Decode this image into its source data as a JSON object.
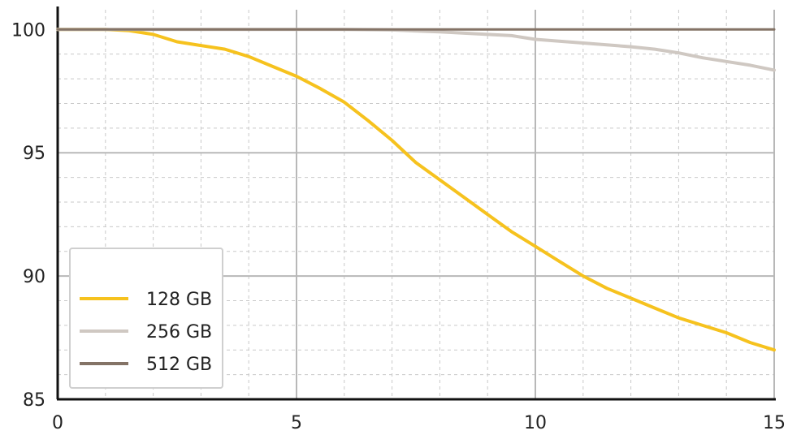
{
  "chart_data": {
    "type": "line",
    "title": "",
    "xlabel": "",
    "ylabel": "",
    "xlim": [
      0,
      15
    ],
    "ylim": [
      85,
      100.8
    ],
    "x_ticks": [
      0,
      5,
      10,
      15
    ],
    "y_ticks": [
      85,
      90,
      95,
      100
    ],
    "x_minor_step": 1,
    "y_minor_step": 1,
    "grid": true,
    "legend_position": "bottom-left",
    "series": [
      {
        "name": "128 GB",
        "color": "#F6C21E",
        "points": [
          [
            0,
            100
          ],
          [
            1,
            100
          ],
          [
            1.5,
            99.95
          ],
          [
            2,
            99.8
          ],
          [
            2.5,
            99.5
          ],
          [
            3,
            99.35
          ],
          [
            3.5,
            99.2
          ],
          [
            4,
            98.9
          ],
          [
            4.5,
            98.5
          ],
          [
            5,
            98.1
          ],
          [
            5.5,
            97.6
          ],
          [
            6,
            97.05
          ],
          [
            6.5,
            96.3
          ],
          [
            7,
            95.5
          ],
          [
            7.5,
            94.6
          ],
          [
            8,
            93.9
          ],
          [
            8.5,
            93.2
          ],
          [
            9,
            92.5
          ],
          [
            9.5,
            91.8
          ],
          [
            10,
            91.2
          ],
          [
            10.5,
            90.6
          ],
          [
            11,
            90.0
          ],
          [
            11.5,
            89.5
          ],
          [
            12,
            89.1
          ],
          [
            12.5,
            88.7
          ],
          [
            13,
            88.3
          ],
          [
            13.5,
            88.0
          ],
          [
            14,
            87.7
          ],
          [
            14.5,
            87.3
          ],
          [
            15,
            87.0
          ]
        ]
      },
      {
        "name": "256 GB",
        "color": "#CFC8C2",
        "points": [
          [
            0,
            100
          ],
          [
            6,
            100
          ],
          [
            7,
            99.98
          ],
          [
            8,
            99.9
          ],
          [
            9,
            99.8
          ],
          [
            9.5,
            99.75
          ],
          [
            10,
            99.6
          ],
          [
            11,
            99.45
          ],
          [
            12,
            99.3
          ],
          [
            12.5,
            99.2
          ],
          [
            13,
            99.05
          ],
          [
            13.5,
            98.85
          ],
          [
            14,
            98.7
          ],
          [
            14.5,
            98.55
          ],
          [
            15,
            98.35
          ]
        ]
      },
      {
        "name": "512 GB",
        "color": "#847366",
        "points": [
          [
            0,
            100
          ],
          [
            15,
            100
          ]
        ]
      }
    ]
  }
}
